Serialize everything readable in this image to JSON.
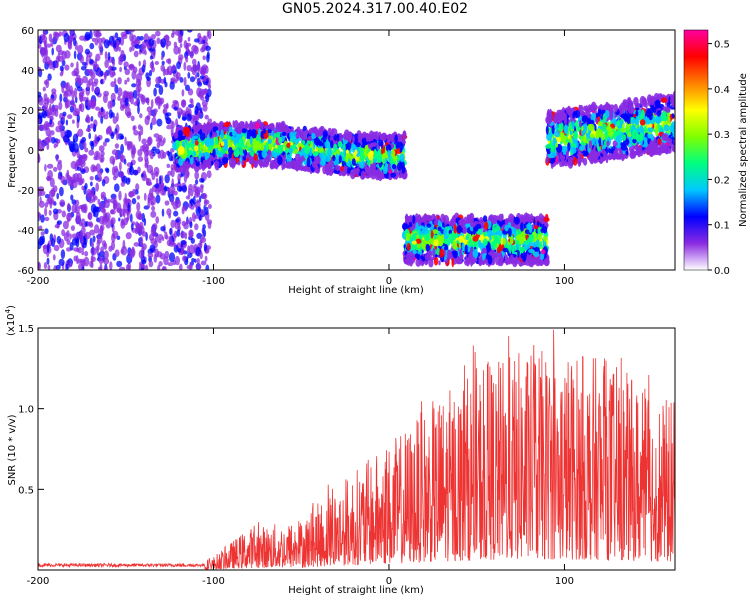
{
  "chart_data": [
    {
      "type": "heatmap",
      "title": "GN05.2024.317.00.40.E02",
      "xlabel": "Height of straight line (km)",
      "ylabel": "Frequency (Hz)",
      "xlim": [
        -200,
        163
      ],
      "ylim": [
        -60,
        60
      ],
      "x_ticks": [
        -200,
        -100,
        0,
        100
      ],
      "y_ticks": [
        -60,
        -40,
        -20,
        0,
        20,
        40,
        60
      ],
      "colorbar": {
        "label": "Normalized spectral amplitude",
        "range": [
          0.0,
          0.53
        ],
        "ticks": [
          "0.0",
          "0.1",
          "0.2",
          "0.3",
          "0.4",
          "0.5"
        ],
        "colors": [
          "#ffffff",
          "#8a2be2",
          "#0000ff",
          "#00c8ff",
          "#00ff80",
          "#80ff00",
          "#ffff00",
          "#ff8000",
          "#ff0000",
          "#ff00a0"
        ]
      },
      "segments": [
        {
          "x_range": [
            -200,
            -102
          ],
          "freq_center": 0,
          "freq_halfwidth": 60,
          "level": "noise"
        },
        {
          "x_range": [
            -122,
            9
          ],
          "freq_center": 0,
          "freq_halfwidth": 9,
          "level": "signal"
        },
        {
          "x_range": [
            9,
            90
          ],
          "freq_center": -45,
          "freq_halfwidth": 10,
          "level": "signal"
        },
        {
          "x_range": [
            90,
            163
          ],
          "freq_center": 5,
          "freq_halfwidth": 12,
          "level": "signal"
        }
      ]
    },
    {
      "type": "line",
      "xlabel": "Height of straight line (km)",
      "ylabel": "SNR (10 * v/v)",
      "y_multiplier": "(x10",
      "y_multiplier_exp": "4",
      "y_multiplier_close": ")",
      "xlim": [
        -200,
        163
      ],
      "ylim": [
        0,
        1.5
      ],
      "x_ticks": [
        -200,
        -100,
        0,
        100
      ],
      "y_ticks": [
        "0.5",
        "1.0",
        "1.5"
      ],
      "color": "#ee3333",
      "envelope": [
        {
          "x": -200,
          "y": 0.03
        },
        {
          "x": -110,
          "y": 0.04
        },
        {
          "x": -100,
          "y": 0.08
        },
        {
          "x": -80,
          "y": 0.25
        },
        {
          "x": -50,
          "y": 0.3
        },
        {
          "x": -25,
          "y": 0.55
        },
        {
          "x": 0,
          "y": 0.75
        },
        {
          "x": 25,
          "y": 1.0
        },
        {
          "x": 50,
          "y": 1.2
        },
        {
          "x": 75,
          "y": 1.3
        },
        {
          "x": 100,
          "y": 1.3
        },
        {
          "x": 125,
          "y": 1.25
        },
        {
          "x": 150,
          "y": 1.05
        },
        {
          "x": 163,
          "y": 1.0
        }
      ]
    }
  ]
}
